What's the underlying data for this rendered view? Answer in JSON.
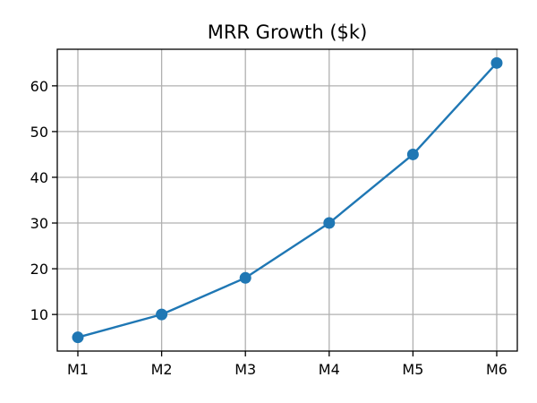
{
  "chart_data": {
    "type": "line",
    "title": "MRR Growth ($k)",
    "xlabel": "",
    "ylabel": "",
    "categories": [
      "M1",
      "M2",
      "M3",
      "M4",
      "M5",
      "M6"
    ],
    "series": [
      {
        "values": [
          5,
          10,
          18,
          30,
          45,
          65
        ],
        "color": "#1f77b4",
        "marker": "circle"
      }
    ],
    "ylim": [
      2,
      68
    ],
    "yticks": [
      10,
      20,
      30,
      40,
      50,
      60
    ],
    "grid": true,
    "legend": "none"
  }
}
